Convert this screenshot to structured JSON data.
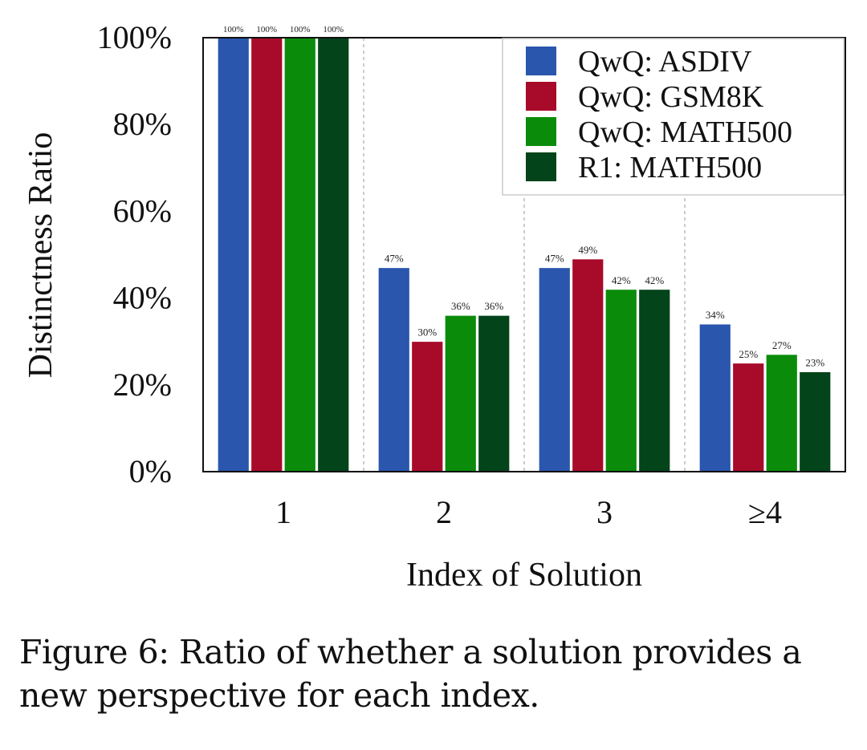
{
  "chart_data": {
    "type": "bar",
    "title": "",
    "xlabel": "Index of Solution",
    "ylabel": "Distinctness Ratio",
    "ylim": [
      0,
      100
    ],
    "yticks": [
      "0%",
      "20%",
      "40%",
      "60%",
      "80%",
      "100%"
    ],
    "categories": [
      "1",
      "2",
      "3",
      "≥4"
    ],
    "series": [
      {
        "name": "QwQ: ASDIV",
        "color": "#2a56ad",
        "values": [
          100,
          47,
          47,
          34
        ],
        "labels": [
          "100%",
          "47%",
          "47%",
          "34%"
        ]
      },
      {
        "name": "QwQ: GSM8K",
        "color": "#a80a2a",
        "values": [
          100,
          30,
          49,
          25
        ],
        "labels": [
          "100%",
          "30%",
          "49%",
          "25%"
        ]
      },
      {
        "name": "QwQ: MATH500",
        "color": "#0a8c0a",
        "values": [
          100,
          36,
          42,
          27
        ],
        "labels": [
          "100%",
          "36%",
          "42%",
          "27%"
        ]
      },
      {
        "name": "R1: MATH500",
        "color": "#03441a",
        "values": [
          100,
          36,
          42,
          23
        ],
        "labels": [
          "100%",
          "36%",
          "42%",
          "23%"
        ]
      }
    ],
    "grid": "vertical dashed separators between groups",
    "legend": "top-right"
  },
  "caption": {
    "line1": "Figure 6: Ratio of whether a solution provides a",
    "line2": "new perspective for each index."
  }
}
